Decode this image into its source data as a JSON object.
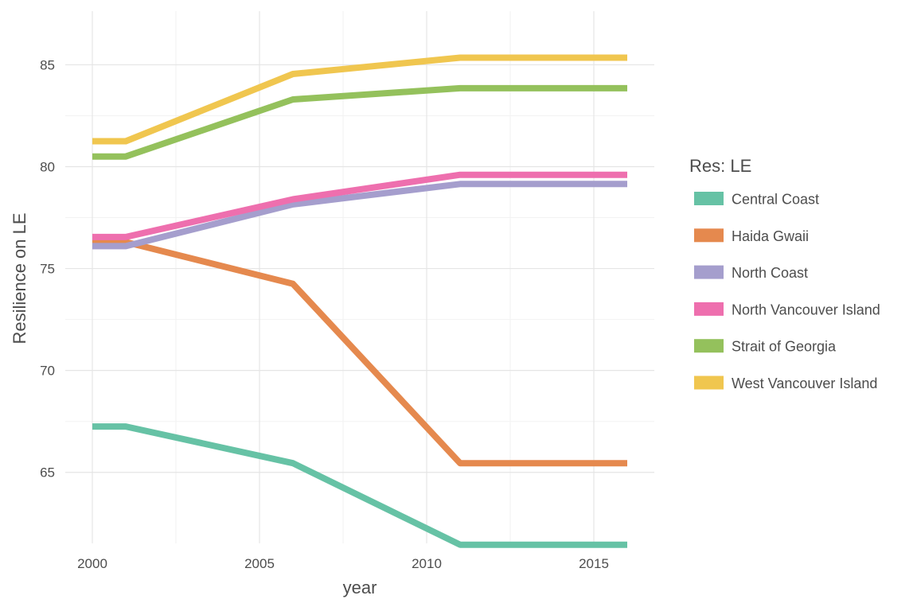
{
  "chart_data": {
    "type": "line",
    "xlabel": "year",
    "ylabel": "Resilience on LE",
    "xlim": [
      2000,
      2016
    ],
    "ylim": [
      60.5,
      86.5
    ],
    "x_ticks": [
      2000,
      2005,
      2010,
      2015
    ],
    "y_ticks": [
      65,
      70,
      75,
      80,
      85
    ],
    "grid": true,
    "legend": {
      "title": "Res: LE",
      "position": "right"
    },
    "x": [
      2000,
      2001,
      2006,
      2011,
      2016
    ],
    "series": [
      {
        "name": "Central Coast",
        "color": "#66c2a5",
        "values": [
          67.25,
          67.25,
          65.45,
          61.45,
          61.45
        ]
      },
      {
        "name": "Haida Gwaii",
        "color": "#e5894e",
        "values": [
          76.3,
          76.3,
          74.25,
          65.45,
          65.45
        ]
      },
      {
        "name": "North Coast",
        "color": "#a59ecd",
        "values": [
          76.1,
          76.1,
          78.15,
          79.15,
          79.15
        ]
      },
      {
        "name": "North Vancouver Island",
        "color": "#ee6fae",
        "values": [
          76.55,
          76.55,
          78.4,
          79.6,
          79.6
        ]
      },
      {
        "name": "Strait of Georgia",
        "color": "#94c15c",
        "values": [
          80.5,
          80.5,
          83.3,
          83.85,
          83.85
        ]
      },
      {
        "name": "West Vancouver Island",
        "color": "#f0c64f",
        "values": [
          81.25,
          81.25,
          84.55,
          85.35,
          85.35
        ]
      }
    ]
  }
}
